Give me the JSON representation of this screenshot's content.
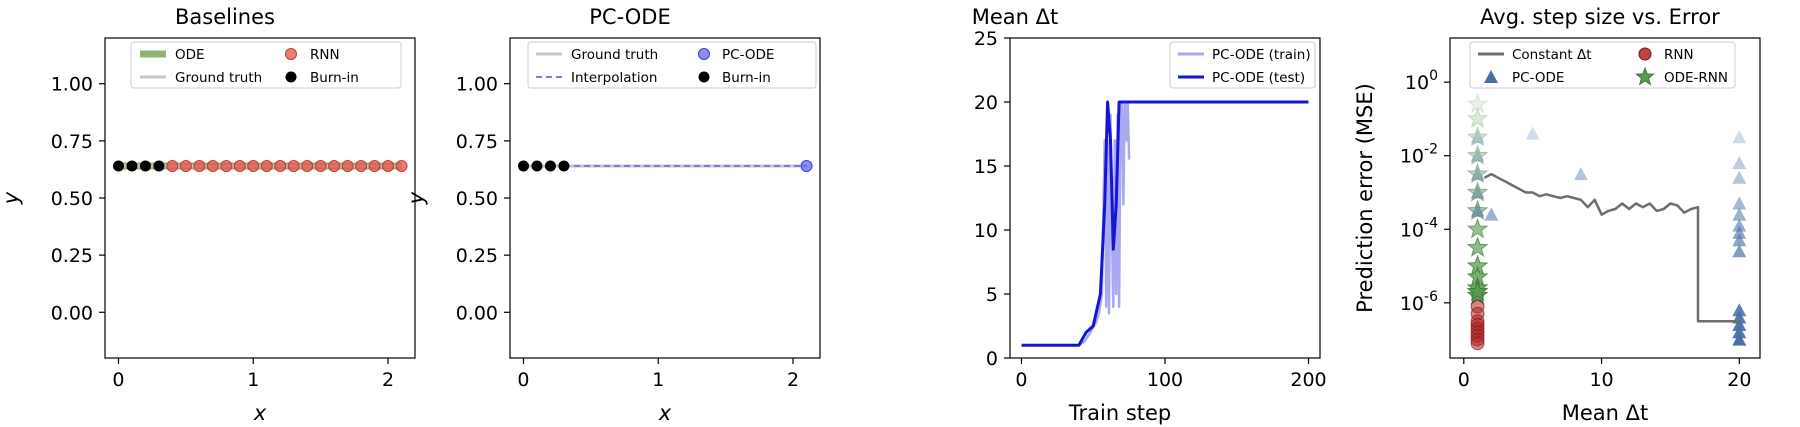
{
  "chart_data": [
    {
      "type": "line",
      "title": "Baselines",
      "xlabel": "x",
      "ylabel": "y",
      "xlim": [
        -0.1,
        2.2
      ],
      "ylim": [
        -0.2,
        1.2
      ],
      "xticks": [
        "0",
        "1",
        "2"
      ],
      "yticks": [
        "0.00",
        "0.25",
        "0.50",
        "0.75",
        "1.00"
      ],
      "legend_position": "top",
      "legend": [
        "ODE",
        "Ground truth",
        "RNN",
        "Burn-in"
      ],
      "series": [
        {
          "name": "ODE",
          "x": [
            0.0,
            2.1
          ],
          "y": [
            0.64,
            0.64
          ],
          "color": "#8fb370"
        },
        {
          "name": "Ground truth",
          "x": [
            0.0,
            2.1
          ],
          "y": [
            0.64,
            0.64
          ],
          "color": "#c6c6c6"
        },
        {
          "name": "RNN",
          "x": [
            0.4,
            0.5,
            0.6,
            0.7,
            0.8,
            0.9,
            1.0,
            1.1,
            1.2,
            1.3,
            1.4,
            1.5,
            1.6,
            1.7,
            1.8,
            1.9,
            2.0,
            2.1
          ],
          "y": [
            0.64,
            0.64,
            0.64,
            0.64,
            0.64,
            0.64,
            0.64,
            0.64,
            0.64,
            0.64,
            0.64,
            0.64,
            0.64,
            0.64,
            0.64,
            0.64,
            0.64,
            0.64
          ],
          "color": "#e8524a"
        },
        {
          "name": "Burn-in",
          "x": [
            0.0,
            0.1,
            0.2,
            0.3
          ],
          "y": [
            0.64,
            0.64,
            0.64,
            0.64
          ],
          "color": "#000000"
        }
      ]
    },
    {
      "type": "line",
      "title": "PC-ODE",
      "xlabel": "x",
      "ylabel": "y",
      "xlim": [
        -0.1,
        2.2
      ],
      "ylim": [
        -0.2,
        1.2
      ],
      "xticks": [
        "0",
        "1",
        "2"
      ],
      "yticks": [
        "0.00",
        "0.25",
        "0.50",
        "0.75",
        "1.00"
      ],
      "legend_position": "top",
      "legend": [
        "Ground truth",
        "Interpolation",
        "PC-ODE",
        "Burn-in"
      ],
      "series": [
        {
          "name": "Ground truth",
          "x": [
            0.0,
            2.1
          ],
          "y": [
            0.64,
            0.64
          ],
          "color": "#c6c6c6"
        },
        {
          "name": "Interpolation",
          "x": [
            0.3,
            2.1
          ],
          "y": [
            0.64,
            0.64
          ],
          "color": "#7b7bf0"
        },
        {
          "name": "PC-ODE",
          "x": [
            2.1
          ],
          "y": [
            0.64
          ],
          "color": "#5a5af0"
        },
        {
          "name": "Burn-in",
          "x": [
            0.0,
            0.1,
            0.2,
            0.3
          ],
          "y": [
            0.64,
            0.64,
            0.64,
            0.64
          ],
          "color": "#000000"
        }
      ]
    },
    {
      "type": "line",
      "title": "Mean Δt",
      "xlabel": "Train step",
      "ylabel": "",
      "xlim": [
        -8,
        208
      ],
      "ylim": [
        0,
        25
      ],
      "xticks": [
        "0",
        "100",
        "200"
      ],
      "yticks": [
        "0",
        "5",
        "10",
        "15",
        "20",
        "25"
      ],
      "legend_position": "top-right",
      "legend": [
        "PC-ODE (train)",
        "PC-ODE (test)"
      ],
      "series": [
        {
          "name": "PC-ODE (train)",
          "color": "#a9a9f2",
          "x": [
            0,
            40,
            44,
            48,
            52,
            54,
            56,
            58,
            59,
            60,
            61,
            62,
            63,
            64,
            65,
            66,
            67,
            68,
            69,
            70,
            71,
            72,
            73,
            74,
            75
          ],
          "y": [
            1,
            1,
            1.3,
            2.0,
            2.8,
            3.5,
            5.0,
            17.0,
            4.0,
            17.0,
            3.5,
            19.0,
            10.0,
            4.0,
            17.0,
            5.0,
            19.0,
            4.0,
            18.0,
            20.0,
            12.0,
            20.0,
            17.0,
            20.0,
            15.5
          ]
        },
        {
          "name": "PC-ODE (test)",
          "color": "#1515d6",
          "x": [
            0,
            40,
            45,
            50,
            55,
            58,
            60,
            62,
            64,
            66,
            68,
            70,
            200
          ],
          "y": [
            1,
            1,
            2.0,
            2.5,
            5.0,
            12.0,
            20.0,
            17.0,
            8.5,
            12.0,
            20.0,
            20.0,
            20.0
          ]
        }
      ]
    },
    {
      "type": "scatter",
      "title": "Avg. step size vs. Error",
      "xlabel": "Mean Δt",
      "ylabel": "Prediction error (MSE)",
      "xlim": [
        -1,
        21.5
      ],
      "ylim_log10": [
        -7.5,
        1.2
      ],
      "yscale": "log",
      "xticks": [
        "0",
        "10",
        "20"
      ],
      "yticks": [
        "10^-6",
        "10^-4",
        "10^-2",
        "10^0"
      ],
      "legend_position": "top",
      "legend": [
        "Constant Δt",
        "PC-ODE",
        "RNN",
        "ODE-RNN"
      ],
      "series": [
        {
          "name": "Constant Δt",
          "color": "#6e6e6e",
          "x": [
            1.5,
            2,
            2.5,
            3,
            3.5,
            4,
            4.5,
            5,
            5.5,
            6,
            6.5,
            7,
            7.5,
            8,
            8.5,
            9,
            9.5,
            10,
            10.5,
            11,
            11.5,
            12,
            12.5,
            13,
            13.5,
            14,
            14.5,
            15,
            15.5,
            16,
            16.5,
            17,
            17.0,
            17.5,
            18,
            19,
            20
          ],
          "log10_y": [
            -2.6,
            -2.5,
            -2.6,
            -2.7,
            -2.8,
            -2.9,
            -3.0,
            -3.0,
            -3.1,
            -3.05,
            -3.1,
            -3.15,
            -3.1,
            -3.15,
            -3.2,
            -3.4,
            -3.2,
            -3.6,
            -3.5,
            -3.45,
            -3.3,
            -3.45,
            -3.3,
            -3.4,
            -3.3,
            -3.5,
            -3.45,
            -3.3,
            -3.35,
            -3.55,
            -3.45,
            -3.4,
            -6.5,
            -6.5,
            -6.5,
            -6.5,
            -6.5
          ]
        },
        {
          "name": "PC-ODE",
          "color": "#4a6fa8",
          "x": [
            1,
            1,
            1,
            1,
            1,
            2,
            5,
            8.5,
            20,
            20,
            20,
            20,
            20,
            20,
            20,
            20,
            20,
            20,
            20,
            20,
            20,
            20
          ],
          "log10_y": [
            -1.5,
            -2.0,
            -2.5,
            -3.0,
            -3.5,
            -3.6,
            -1.4,
            -2.5,
            -1.5,
            -2.2,
            -2.6,
            -3.3,
            -3.6,
            -3.9,
            -4.1,
            -4.3,
            -4.6,
            -6.2,
            -6.4,
            -6.6,
            -6.8,
            -7.0
          ]
        },
        {
          "name": "RNN",
          "color": "#b22222",
          "x": [
            1,
            1,
            1,
            1,
            1,
            1,
            1,
            1,
            1
          ],
          "log10_y": [
            -6.1,
            -6.3,
            -6.5,
            -6.6,
            -6.7,
            -6.8,
            -6.9,
            -7.0,
            -7.1
          ]
        },
        {
          "name": "ODE-RNN",
          "color": "#5a9a50",
          "x": [
            1,
            1,
            1,
            1,
            1,
            1,
            1,
            1,
            1,
            1,
            1,
            1,
            1,
            1
          ],
          "log10_y": [
            -0.6,
            -1.0,
            -1.5,
            -2.0,
            -2.5,
            -3.0,
            -3.5,
            -4.0,
            -4.5,
            -5.0,
            -5.3,
            -5.6,
            -5.8,
            -5.7
          ]
        }
      ]
    }
  ]
}
